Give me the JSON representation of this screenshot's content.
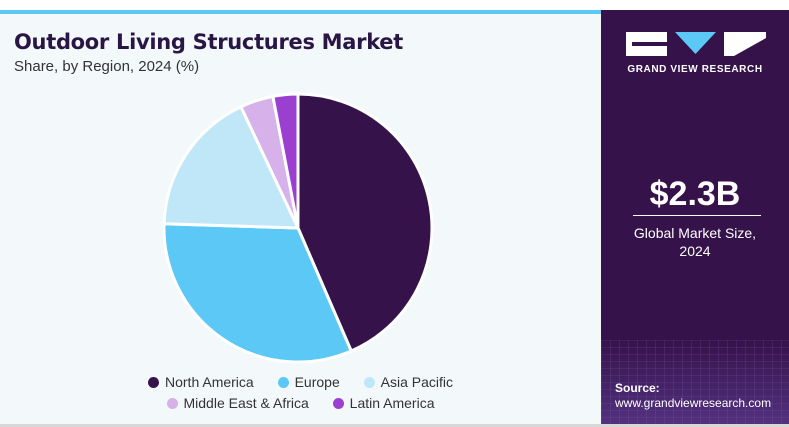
{
  "header": {
    "title": "Outdoor Living Structures Market",
    "subtitle": "Share, by Region, 2024 (%)"
  },
  "chart_data": {
    "type": "pie",
    "title": "Outdoor Living Structures Market",
    "subtitle": "Share, by Region, 2024 (%)",
    "categories": [
      "North America",
      "Europe",
      "Asia Pacific",
      "Middle East & Africa",
      "Latin America"
    ],
    "values": [
      43.5,
      32.0,
      17.5,
      4.0,
      3.0
    ],
    "colors": [
      "#36124a",
      "#5bc8f5",
      "#c0e7f8",
      "#d7b1ea",
      "#9b3fd0"
    ],
    "legend_position": "bottom"
  },
  "sidebar": {
    "brand": "GRAND VIEW RESEARCH",
    "market_value": "$2.3B",
    "market_label_line1": "Global Market Size,",
    "market_label_line2": "2024",
    "source_label": "Source:",
    "source_url": "www.grandviewresearch.com"
  },
  "colors": {
    "panel": "#36124a",
    "accent": "#5bc8f5",
    "background": "#f3f8fb"
  }
}
